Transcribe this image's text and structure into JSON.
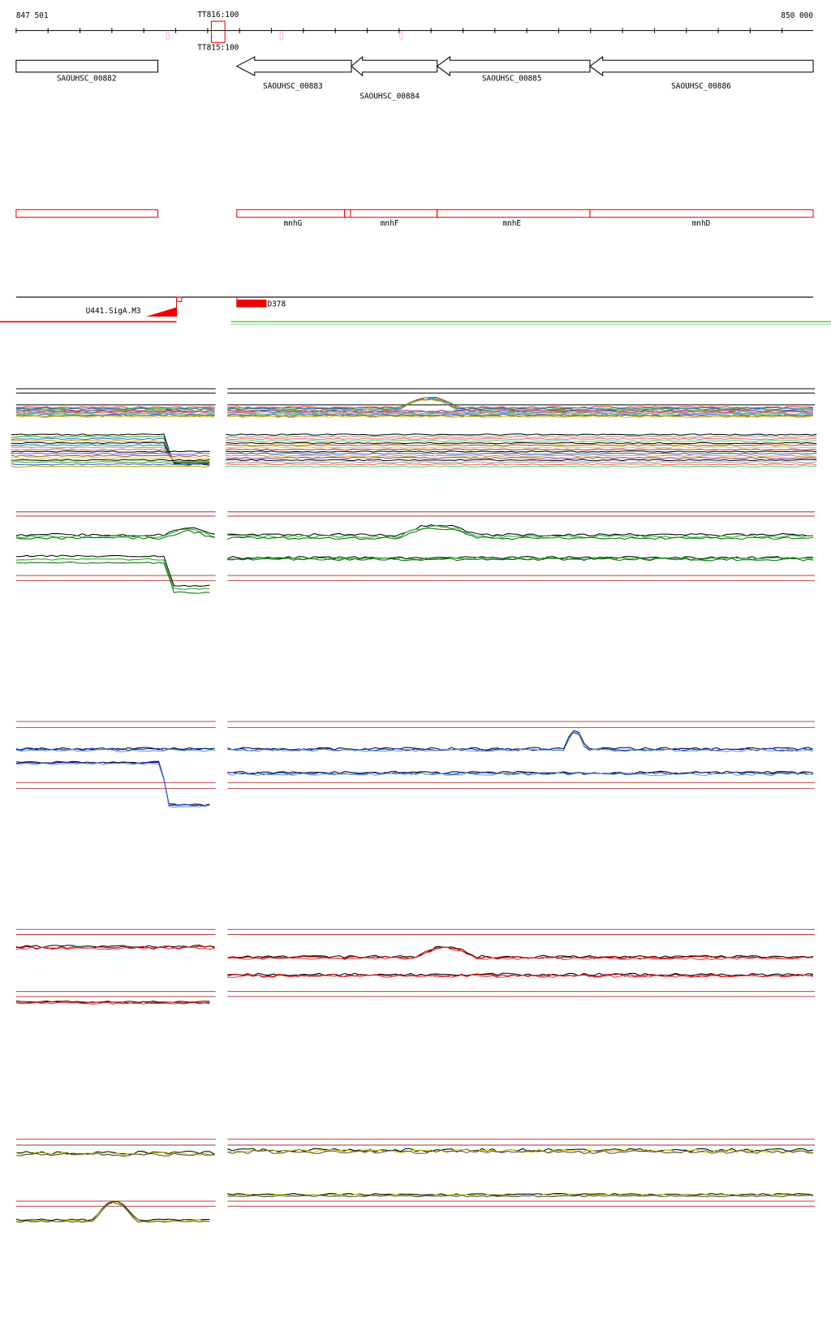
{
  "ruler": {
    "start": "847 501",
    "end": "850 000"
  },
  "terminators": [
    "TT816:100",
    "TT815:100"
  ],
  "genes": [
    "SAOUHSC_00882",
    "SAOUHSC_00883",
    "SAOUHSC_00884",
    "SAOUHSC_00885",
    "SAOUHSC_00886"
  ],
  "gene_names": [
    "mnhG",
    "mnhF",
    "mnhE",
    "mnhD"
  ],
  "promoter": "U441.SigA.M3",
  "transcript": "D378"
}
